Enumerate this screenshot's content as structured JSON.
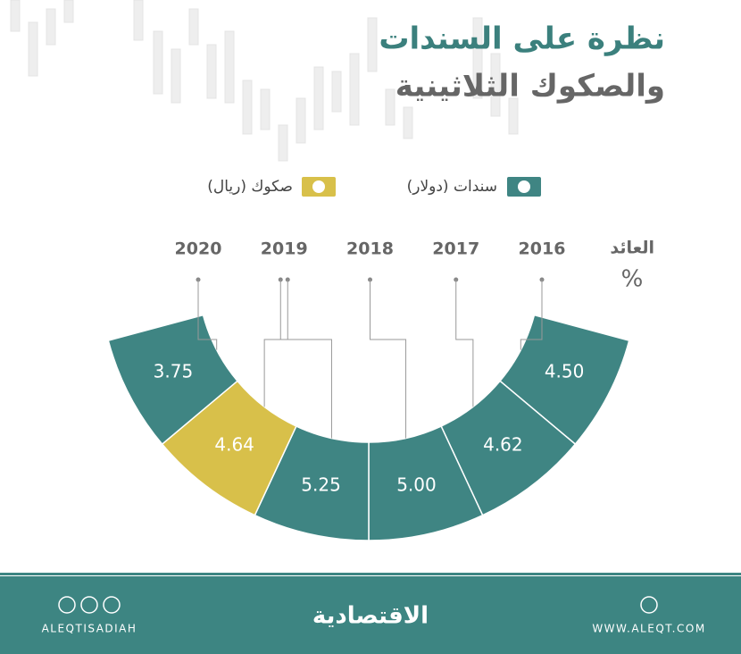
{
  "title": [
    "نظرة على السندات",
    "والصكوك الثلاثينية"
  ],
  "chart_data": {
    "type": "arc",
    "y_label": "العائد",
    "y_unit": "%",
    "categories": [
      "2016",
      "2017",
      "2018",
      "2019",
      "2020"
    ],
    "series": [
      {
        "name": "سندات (دولار)",
        "color": "#3f8583",
        "values": [
          4.5,
          4.62,
          5,
          5.25,
          3.75
        ],
        "value_labels": [
          "4.50",
          "4.62",
          "5.00",
          "5.25",
          "3.75"
        ]
      },
      {
        "name": "صكوك (ريال)",
        "color": "#d8c04a",
        "values": [
          null,
          null,
          null,
          4.64,
          null
        ],
        "value_labels": [
          null,
          null,
          null,
          "4.64",
          null
        ]
      }
    ]
  },
  "footer": {
    "handle": "ALEQTISADIAH",
    "brand": "الاقتصادية",
    "url": "WWW.ALEQT.COM"
  }
}
